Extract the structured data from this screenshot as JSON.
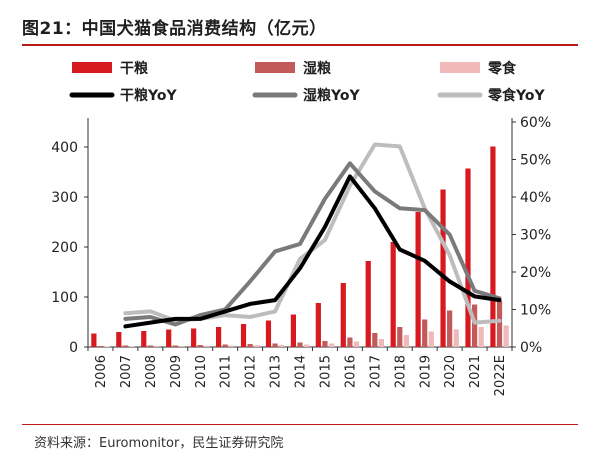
{
  "title": "图21：中国犬猫食品消费结构（亿元）",
  "source": "资料来源：Euromonitor，民生证券研究院",
  "colors": {
    "dry": "#d71920",
    "wet": "#c25a5a",
    "snack": "#f0b8b8",
    "dry_yoy": "#000000",
    "wet_yoy": "#7a7a7a",
    "snack_yoy": "#bdbdbd"
  },
  "chart_data": {
    "type": "bar+line",
    "categories": [
      "2006",
      "2007",
      "2008",
      "2009",
      "2010",
      "2011",
      "2012",
      "2013",
      "2014",
      "2015",
      "2016",
      "2017",
      "2018",
      "2019",
      "2020",
      "2021",
      "2022E"
    ],
    "left_axis": {
      "ylim": [
        0,
        450
      ],
      "ticks": [
        "0",
        "100",
        "200",
        "300",
        "400"
      ],
      "tick_values": [
        0,
        100,
        200,
        300,
        400
      ]
    },
    "right_axis": {
      "ylim": [
        0,
        0.6
      ],
      "ticks": [
        "0%",
        "10%",
        "20%",
        "30%",
        "40%",
        "50%",
        "60%"
      ],
      "tick_values": [
        0,
        0.1,
        0.2,
        0.3,
        0.4,
        0.5,
        0.6
      ]
    },
    "bars": [
      {
        "name": "干粮",
        "color_key": "dry",
        "values": [
          27,
          30,
          32,
          35,
          37,
          40,
          46,
          53,
          65,
          88,
          128,
          172,
          210,
          270,
          315,
          357,
          401
        ]
      },
      {
        "name": "湿粮",
        "color_key": "wet",
        "values": [
          2,
          3,
          3,
          3,
          4,
          5,
          6,
          7,
          9,
          12,
          19,
          28,
          40,
          55,
          73,
          85,
          92
        ]
      },
      {
        "name": "零食",
        "color_key": "snack",
        "values": [
          1,
          1.5,
          2,
          2,
          2.5,
          3,
          3.5,
          4,
          5,
          7,
          11,
          16,
          24,
          31,
          35,
          40,
          43
        ]
      }
    ],
    "lines": [
      {
        "name": "干粮YoY",
        "color_key": "dry_yoy",
        "start_index": 1,
        "values": [
          0.055,
          0.065,
          0.075,
          0.075,
          0.095,
          0.115,
          0.125,
          0.21,
          0.32,
          0.455,
          0.37,
          0.26,
          0.23,
          0.175,
          0.135,
          0.125
        ]
      },
      {
        "name": "湿粮YoY",
        "color_key": "wet_yoy",
        "start_index": 1,
        "values": [
          0.075,
          0.08,
          0.06,
          0.085,
          0.1,
          0.175,
          0.255,
          0.275,
          0.395,
          0.49,
          0.415,
          0.37,
          0.365,
          0.3,
          0.15,
          0.13
        ]
      },
      {
        "name": "零食YoY",
        "color_key": "snack_yoy",
        "start_index": 1,
        "values": [
          0.09,
          0.095,
          0.07,
          0.075,
          0.085,
          0.08,
          0.095,
          0.235,
          0.285,
          0.43,
          0.54,
          0.535,
          0.37,
          0.245,
          0.065,
          0.07
        ]
      }
    ],
    "legend_position": "top",
    "grid": false
  }
}
